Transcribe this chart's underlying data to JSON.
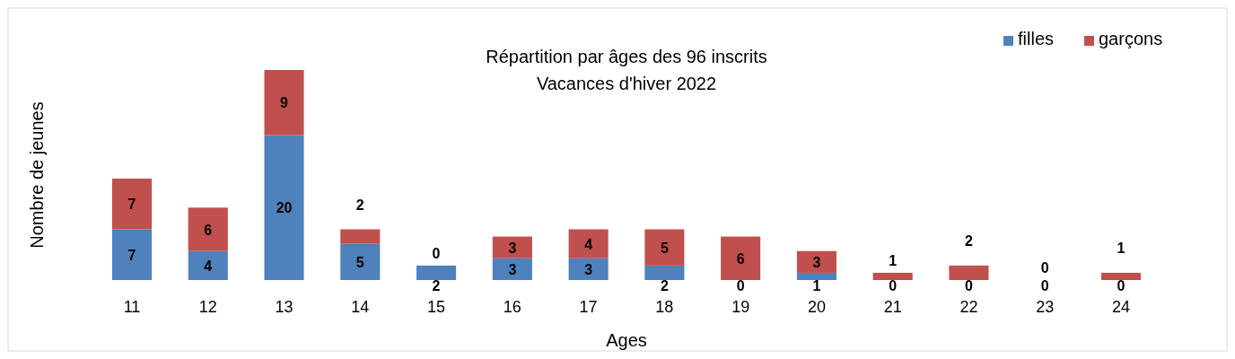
{
  "chart_data": {
    "type": "bar",
    "stacked": true,
    "title": "Répartition par âges des 96 inscrits",
    "subtitle": "Vacances d'hiver 2022",
    "xlabel": "Ages",
    "ylabel": "Nombre de jeunes",
    "categories": [
      "11",
      "12",
      "13",
      "14",
      "15",
      "16",
      "17",
      "18",
      "19",
      "20",
      "21",
      "22",
      "23",
      "24"
    ],
    "series": [
      {
        "name": "filles",
        "color": "#4f81bd",
        "values": [
          7,
          4,
          20,
          5,
          2,
          3,
          3,
          2,
          0,
          1,
          0,
          0,
          0,
          0
        ]
      },
      {
        "name": "garçons",
        "color": "#c0504d",
        "values": [
          7,
          6,
          9,
          2,
          0,
          3,
          4,
          5,
          6,
          3,
          1,
          2,
          0,
          1
        ]
      }
    ],
    "data_labels": true,
    "legend": "top right",
    "grid": false
  }
}
